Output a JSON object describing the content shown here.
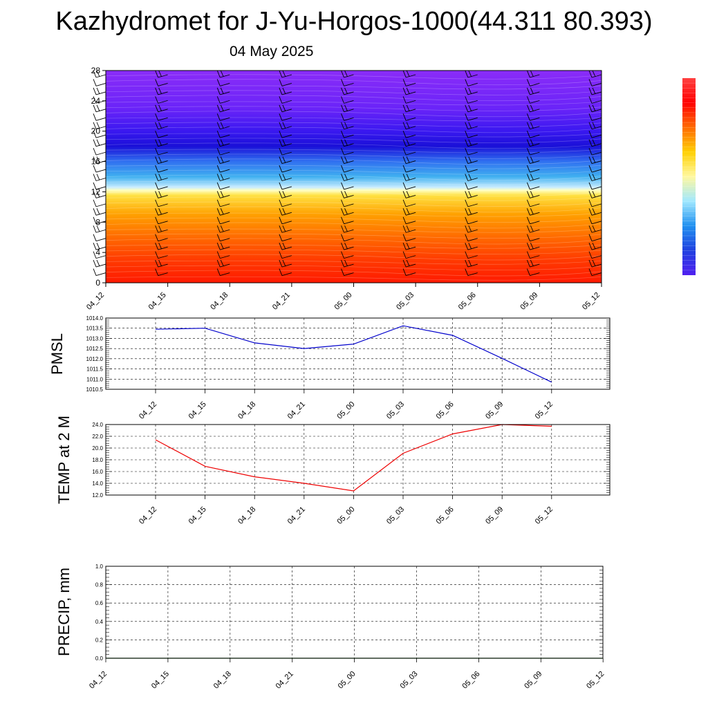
{
  "header": {
    "title": "Kazhydromet for J-Yu-Horgos-1000(44.311 80.393)",
    "date": "04 May 2025"
  },
  "chart_data": [
    {
      "type": "heatmap",
      "title": "",
      "xlabel": "",
      "ylabel": "",
      "x_ticks": [
        "04_12",
        "04_15",
        "04_18",
        "04_21",
        "05_00",
        "05_03",
        "05_06",
        "05_09",
        "05_12"
      ],
      "y_ticks": [
        0,
        4,
        8,
        12,
        16,
        20,
        24,
        28
      ],
      "ylim": [
        0,
        28
      ],
      "color_bands": [
        {
          "y": 0,
          "color": "#ff1a00"
        },
        {
          "y": 3,
          "color": "#ff3a00"
        },
        {
          "y": 6,
          "color": "#ff6a00"
        },
        {
          "y": 9,
          "color": "#ffa000"
        },
        {
          "y": 11.5,
          "color": "#ffe040"
        },
        {
          "y": 12.2,
          "color": "#ffffc0"
        },
        {
          "y": 12.6,
          "color": "#c8ecff"
        },
        {
          "y": 14,
          "color": "#40b0f0"
        },
        {
          "y": 16,
          "color": "#3070f0"
        },
        {
          "y": 18,
          "color": "#1a10d8"
        },
        {
          "y": 20,
          "color": "#3a18f0"
        },
        {
          "y": 23,
          "color": "#6a24f8"
        },
        {
          "y": 28,
          "color": "#8a2cf8"
        }
      ],
      "colorbar": [
        "#ff4040",
        "#ff0000",
        "#ff6a00",
        "#ffd000",
        "#fff8a0",
        "#a0e8ff",
        "#2090f0",
        "#2040e0",
        "#5020f0"
      ],
      "wind_barb_columns": [
        "04_12",
        "04_15",
        "04_18",
        "04_21",
        "05_00",
        "05_03",
        "05_06",
        "05_09",
        "05_12"
      ]
    },
    {
      "type": "line",
      "title": "",
      "ylabel": "PMSL",
      "categories": [
        "04_12",
        "04_15",
        "04_18",
        "04_21",
        "05_00",
        "05_03",
        "05_06",
        "05_09",
        "05_12"
      ],
      "series": [
        {
          "values": [
            1013.45,
            1013.5,
            1012.78,
            1012.5,
            1012.72,
            1013.62,
            1013.15,
            1012.02,
            1010.85
          ],
          "color": "#0000cc"
        }
      ],
      "y_ticks": [
        "1010.5",
        "1011.0",
        "1011.5",
        "1012.0",
        "1012.5",
        "1013.0",
        "1013.5",
        "1014.0"
      ],
      "ylim": [
        1010.5,
        1014.0
      ],
      "grid": true
    },
    {
      "type": "line",
      "title": "",
      "ylabel": "TEMP at 2 M",
      "categories": [
        "04_12",
        "04_15",
        "04_18",
        "04_21",
        "05_00",
        "05_03",
        "05_06",
        "05_09",
        "05_12"
      ],
      "series": [
        {
          "values": [
            21.4,
            16.9,
            15.1,
            14.0,
            12.7,
            19.1,
            22.4,
            24.0,
            23.7
          ],
          "color": "#ee0000"
        }
      ],
      "y_ticks": [
        "12.0",
        "14.0",
        "16.0",
        "18.0",
        "20.0",
        "22.0",
        "24.0"
      ],
      "ylim": [
        12.0,
        24.0
      ],
      "grid": true
    },
    {
      "type": "line",
      "title": "",
      "ylabel": "PRECIP, mm",
      "categories": [
        "04_12",
        "04_15",
        "04_18",
        "04_21",
        "05_00",
        "05_03",
        "05_06",
        "05_09",
        "05_12"
      ],
      "series": [
        {
          "values": [
            0,
            0,
            0,
            0,
            0,
            0,
            0,
            0,
            0
          ],
          "color": "#006600"
        }
      ],
      "y_ticks": [
        "0.0",
        "0.2",
        "0.4",
        "0.6",
        "0.8",
        "1.0"
      ],
      "ylim": [
        0.0,
        1.0
      ],
      "grid": true
    }
  ]
}
